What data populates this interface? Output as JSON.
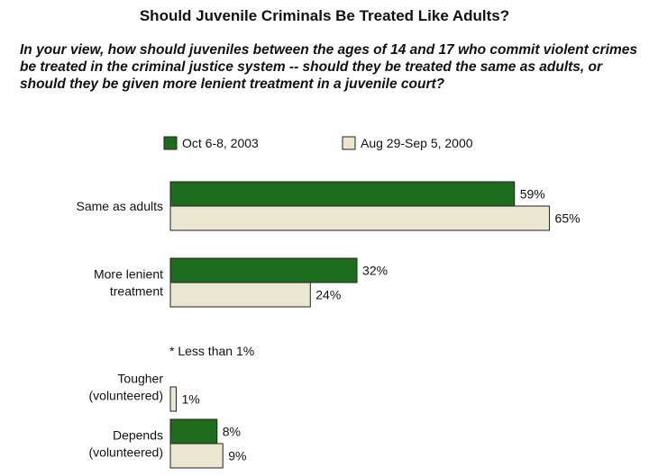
{
  "title": "Should Juvenile Criminals Be Treated Like Adults?",
  "question": "In your view, how should juveniles between the ages of 14 and 17 who commit violent crimes be treated in the criminal justice system -- should they be treated the same as adults, or should they be given more lenient treatment in a juvenile court?",
  "colors": {
    "series_2003": "#1d6b1d",
    "series_2000": "#ebe6cf",
    "border": "#222222"
  },
  "chart_data": {
    "type": "bar",
    "orientation": "horizontal",
    "categories": [
      [
        "Same as adults"
      ],
      [
        "More lenient",
        "treatment"
      ],
      [
        "Tougher",
        "(volunteered)"
      ],
      [
        "Depends",
        "(volunteered)"
      ]
    ],
    "series": [
      {
        "name": "Oct 6-8, 2003",
        "values": [
          59,
          32,
          0,
          8
        ],
        "labels": [
          "59%",
          "32%",
          "",
          "8%"
        ]
      },
      {
        "name": "Aug 29-Sep 5, 2000",
        "values": [
          65,
          24,
          1,
          9
        ],
        "labels": [
          "65%",
          "24%",
          "1%",
          "9%"
        ]
      }
    ],
    "annotations": [
      "* Less than 1%"
    ],
    "legend": "top",
    "xlim": [
      0,
      65
    ]
  }
}
